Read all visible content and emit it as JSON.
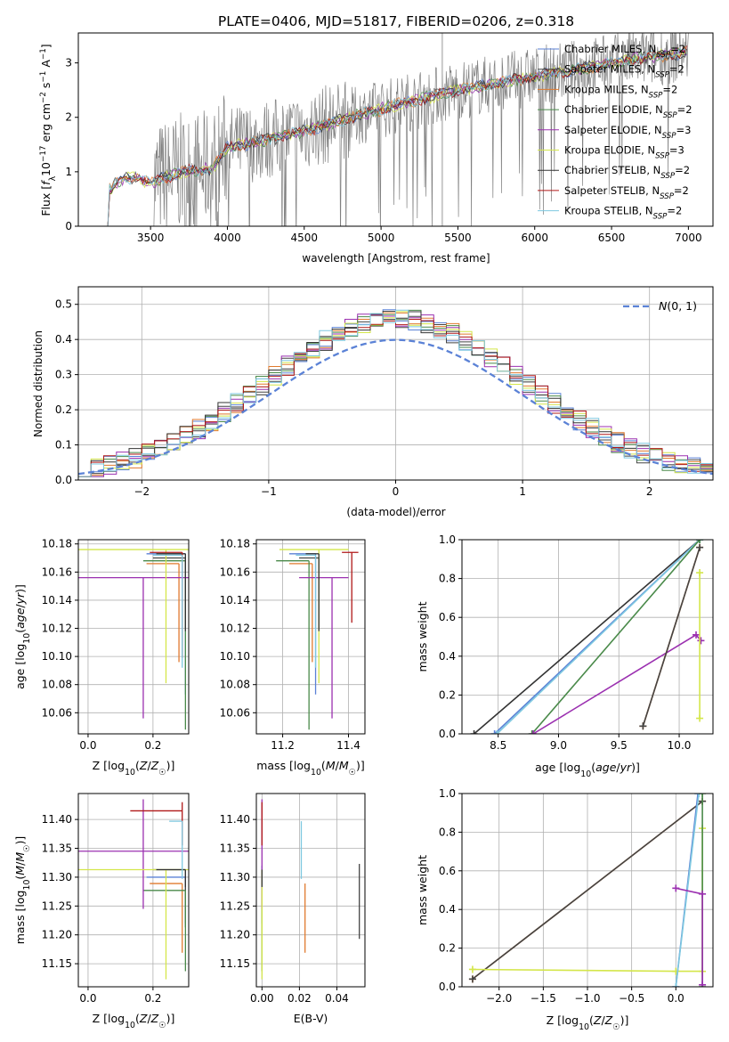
{
  "page": {
    "title": "PLATE=0406, MJD=51817, FIBERID=0206, z=0.318"
  },
  "colors": {
    "Chabrier MILES": "#5b82d6",
    "Salpeter MILES": "#444444",
    "Kroupa MILES": "#e07a2e",
    "Chabrier ELODIE": "#4a8a4a",
    "Salpeter ELODIE": "#9b30b0",
    "Kroupa ELODIE": "#d4e64a",
    "Chabrier STELIB": "#333333",
    "Salpeter STELIB": "#b01818",
    "Kroupa STELIB": "#7ec8e0",
    "data_spectrum": "#808080",
    "grid": "#b0b0b0"
  },
  "chart_data": [
    {
      "id": "spectrum",
      "type": "line",
      "title": "PLATE=0406, MJD=51817, FIBERID=0206, z=0.318",
      "xlabel": "wavelength [Angstrom, rest frame]",
      "ylabel": "Flux [fλ10⁻¹⁷ erg cm⁻² s⁻¹ A⁻¹]",
      "xlim": [
        3030,
        7160
      ],
      "ylim": [
        0,
        3.55
      ],
      "xticks": [
        3500,
        4000,
        4500,
        5000,
        5500,
        6000,
        6500,
        7000
      ],
      "yticks": [
        0,
        1,
        2,
        3
      ],
      "grid": false,
      "legend_position": "top-right",
      "legend": [
        {
          "label": "Chabrier MILES, N",
          "sub": "SSP",
          "tail": "=2"
        },
        {
          "label": "Salpeter MILES, N",
          "sub": "SSP",
          "tail": "=2"
        },
        {
          "label": "Kroupa MILES, N",
          "sub": "SSP",
          "tail": "=2"
        },
        {
          "label": "Chabrier ELODIE, N",
          "sub": "SSP",
          "tail": "=2"
        },
        {
          "label": "Salpeter ELODIE, N",
          "sub": "SSP",
          "tail": "=3"
        },
        {
          "label": "Kroupa ELODIE, N",
          "sub": "SSP",
          "tail": "=3"
        },
        {
          "label": "Chabrier STELIB, N",
          "sub": "SSP",
          "tail": "=2"
        },
        {
          "label": "Salpeter STELIB, N",
          "sub": "SSP",
          "tail": "=2"
        },
        {
          "label": "Kroupa STELIB, N",
          "sub": "SSP",
          "tail": "=2"
        }
      ],
      "continuum_knots": [
        [
          3210,
          0.6
        ],
        [
          3300,
          0.85
        ],
        [
          3400,
          0.9
        ],
        [
          3500,
          0.8
        ],
        [
          3700,
          1.0
        ],
        [
          3900,
          1.05
        ],
        [
          4000,
          1.45
        ],
        [
          4200,
          1.55
        ],
        [
          4500,
          1.75
        ],
        [
          4800,
          2.0
        ],
        [
          5000,
          2.15
        ],
        [
          5200,
          2.3
        ],
        [
          5500,
          2.5
        ],
        [
          5800,
          2.65
        ],
        [
          6000,
          2.75
        ],
        [
          6300,
          2.9
        ],
        [
          6600,
          3.05
        ],
        [
          7000,
          3.2
        ]
      ]
    },
    {
      "id": "residuals",
      "type": "histogram",
      "xlabel": "(data-model)/error",
      "ylabel": "Normed distribution",
      "xlim": [
        -2.5,
        2.5
      ],
      "ylim": [
        0,
        0.55
      ],
      "xticks": [
        -2,
        -1,
        0,
        1,
        2
      ],
      "yticks": [
        0.0,
        0.1,
        0.2,
        0.3,
        0.4,
        0.5
      ],
      "grid": true,
      "legend_position": "top-right",
      "reference_curve": {
        "label": "N(0, 1)",
        "mean": 0,
        "sigma": 1
      }
    },
    {
      "id": "age_vs_Z",
      "type": "errorbar",
      "xlabel": "Z [log10(Z/Z☉)]",
      "ylabel": "age  [log10(age/yr)]",
      "xlim": [
        -0.03,
        0.31
      ],
      "ylim": [
        10.045,
        10.183
      ],
      "xticks": [
        0.0,
        0.2
      ],
      "yticks": [
        10.06,
        10.08,
        10.1,
        10.12,
        10.14,
        10.16,
        10.18
      ],
      "grid": true,
      "points": [
        {
          "series": "Chabrier MILES",
          "x": 0.3,
          "xerr": [
            0.12,
            0
          ],
          "y": 10.173,
          "yerr": [
            0.1,
            0
          ]
        },
        {
          "series": "Salpeter MILES",
          "x": 0.3,
          "xerr": [
            0.1,
            0
          ],
          "y": 10.17,
          "yerr": [
            0.05,
            0
          ]
        },
        {
          "series": "Kroupa MILES",
          "x": 0.28,
          "xerr": [
            0.1,
            0
          ],
          "y": 10.166,
          "yerr": [
            0.07,
            0
          ]
        },
        {
          "series": "Chabrier ELODIE",
          "x": 0.3,
          "xerr": [
            0.13,
            0
          ],
          "y": 10.168,
          "yerr": [
            0.12,
            0
          ]
        },
        {
          "series": "Salpeter ELODIE",
          "x": 0.17,
          "xerr": [
            0.25,
            0.2
          ],
          "y": 10.156,
          "yerr": [
            0.1,
            0
          ]
        },
        {
          "series": "Kroupa ELODIE",
          "x": 0.24,
          "xerr": [
            0.3,
            0.07
          ],
          "y": 10.176,
          "yerr": [
            0.095,
            0
          ]
        },
        {
          "series": "Chabrier STELIB",
          "x": 0.3,
          "xerr": [
            0.09,
            0
          ],
          "y": 10.173,
          "yerr": [
            0.055,
            0
          ]
        },
        {
          "series": "Salpeter STELIB",
          "x": 0.29,
          "xerr": [
            0.1,
            0
          ],
          "y": 10.174,
          "yerr": [
            0.075,
            0
          ]
        },
        {
          "series": "Kroupa STELIB",
          "x": 0.29,
          "xerr": [
            0.09,
            0
          ],
          "y": 10.172,
          "yerr": [
            0.08,
            0
          ]
        }
      ]
    },
    {
      "id": "age_vs_mass",
      "type": "errorbar",
      "xlabel": "mass [log10(M/M☉)]",
      "ylabel": "",
      "xlim": [
        11.12,
        11.45
      ],
      "ylim": [
        10.045,
        10.183
      ],
      "xticks": [
        11.2,
        11.4
      ],
      "yticks": [
        10.06,
        10.08,
        10.1,
        10.12,
        10.14,
        10.16,
        10.18
      ],
      "grid": true,
      "points": [
        {
          "series": "Chabrier MILES",
          "x": 11.3,
          "xerr": [
            0.08,
            0
          ],
          "y": 10.173,
          "yerr": [
            0.1,
            0
          ]
        },
        {
          "series": "Salpeter MILES",
          "x": 11.31,
          "xerr": [
            0.06,
            0
          ],
          "y": 10.17,
          "yerr": [
            0.05,
            0
          ]
        },
        {
          "series": "Kroupa MILES",
          "x": 11.29,
          "xerr": [
            0.07,
            0
          ],
          "y": 10.166,
          "yerr": [
            0.07,
            0
          ]
        },
        {
          "series": "Chabrier ELODIE",
          "x": 11.28,
          "xerr": [
            0.1,
            0
          ],
          "y": 10.168,
          "yerr": [
            0.12,
            0
          ]
        },
        {
          "series": "Salpeter ELODIE",
          "x": 11.35,
          "xerr": [
            0.1,
            0.05
          ],
          "y": 10.156,
          "yerr": [
            0.1,
            0
          ]
        },
        {
          "series": "Kroupa ELODIE",
          "x": 11.31,
          "xerr": [
            0.12,
            0.09
          ],
          "y": 10.176,
          "yerr": [
            0.095,
            0
          ]
        },
        {
          "series": "Chabrier STELIB",
          "x": 11.31,
          "xerr": [
            0.04,
            0
          ],
          "y": 10.173,
          "yerr": [
            0.055,
            0
          ]
        },
        {
          "series": "Salpeter STELIB",
          "x": 11.41,
          "xerr": [
            0.03,
            0.02
          ],
          "y": 10.174,
          "yerr": [
            0.05,
            0
          ]
        },
        {
          "series": "Kroupa STELIB",
          "x": 11.3,
          "xerr": [
            0.06,
            0
          ],
          "y": 10.172,
          "yerr": [
            0.08,
            0
          ]
        }
      ]
    },
    {
      "id": "weight_vs_age",
      "type": "line",
      "xlabel": "age  [log10(age/yr)]",
      "ylabel": "mass weight",
      "xlim": [
        8.2,
        10.28
      ],
      "ylim": [
        0.0,
        1.0
      ],
      "xticks": [
        8.5,
        9.0,
        9.5,
        10.0
      ],
      "yticks": [
        0.0,
        0.2,
        0.4,
        0.6,
        0.8,
        1.0
      ],
      "grid": true,
      "series": [
        {
          "name": "Chabrier STELIB",
          "x": [
            8.3,
            10.17
          ],
          "y": [
            0.0,
            1.0
          ]
        },
        {
          "name": "Chabrier MILES",
          "x": [
            8.47,
            10.17
          ],
          "y": [
            0.0,
            1.0
          ]
        },
        {
          "name": "Kroupa STELIB",
          "x": [
            8.49,
            10.17
          ],
          "y": [
            0.0,
            1.0
          ]
        },
        {
          "name": "Chabrier ELODIE",
          "x": [
            8.78,
            10.17
          ],
          "y": [
            0.0,
            1.0
          ]
        },
        {
          "name": "Salpeter ELODIE",
          "x": [
            8.79,
            10.14,
            10.18
          ],
          "y": [
            0.0,
            0.51,
            0.48
          ]
        },
        {
          "name": "Kroupa MILES",
          "x": [
            9.7,
            10.17
          ],
          "y": [
            0.04,
            0.96
          ]
        },
        {
          "name": "Salpeter MILES",
          "x": [
            9.7,
            10.17
          ],
          "y": [
            0.04,
            0.96
          ]
        },
        {
          "name": "Kroupa ELODIE",
          "x": [
            10.17,
            10.17
          ],
          "y": [
            0.08,
            0.83
          ]
        }
      ]
    },
    {
      "id": "mass_vs_Z",
      "type": "errorbar",
      "xlabel": "Z [log10(Z/Z☉)]",
      "ylabel": "mass [log10(M/M☉)]",
      "xlim": [
        -0.03,
        0.31
      ],
      "ylim": [
        11.11,
        11.445
      ],
      "xticks": [
        0.0,
        0.2
      ],
      "yticks": [
        11.15,
        11.2,
        11.25,
        11.3,
        11.35,
        11.4
      ],
      "grid": true,
      "points": [
        {
          "series": "Chabrier MILES",
          "x": 0.3,
          "xerr": [
            0.12,
            0
          ],
          "y": 11.3,
          "yerr": [
            0.08,
            0
          ]
        },
        {
          "series": "Salpeter MILES",
          "x": 0.3,
          "xerr": [
            0.1,
            0
          ],
          "y": 11.313,
          "yerr": [
            0.1,
            0
          ]
        },
        {
          "series": "Kroupa MILES",
          "x": 0.29,
          "xerr": [
            0.1,
            0
          ],
          "y": 11.289,
          "yerr": [
            0.12,
            0
          ]
        },
        {
          "series": "Chabrier ELODIE",
          "x": 0.3,
          "xerr": [
            0.13,
            0
          ],
          "y": 11.277,
          "yerr": [
            0.14,
            0
          ]
        },
        {
          "series": "Salpeter ELODIE",
          "x": 0.17,
          "xerr": [
            0.25,
            0.2
          ],
          "y": 11.345,
          "yerr": [
            0.1,
            0.09
          ]
        },
        {
          "series": "Kroupa ELODIE",
          "x": 0.24,
          "xerr": [
            0.3,
            0.07
          ],
          "y": 11.313,
          "yerr": [
            0.19,
            0
          ]
        },
        {
          "series": "Chabrier STELIB",
          "x": 0.3,
          "xerr": [
            0.09,
            0
          ],
          "y": 11.313,
          "yerr": [
            0.03,
            0
          ]
        },
        {
          "series": "Salpeter STELIB",
          "x": 0.29,
          "xerr": [
            0.16,
            0
          ],
          "y": 11.415,
          "yerr": [
            0.06,
            0.015
          ]
        },
        {
          "series": "Kroupa STELIB",
          "x": 0.29,
          "xerr": [
            0.04,
            0
          ],
          "y": 11.397,
          "yerr": [
            0.1,
            0
          ]
        }
      ]
    },
    {
      "id": "mass_vs_EBV",
      "type": "errorbar",
      "xlabel": "E(B-V)",
      "ylabel": "",
      "xlim": [
        -0.003,
        0.055
      ],
      "ylim": [
        11.11,
        11.445
      ],
      "xticks": [
        0.0,
        0.02,
        0.04
      ],
      "yticks": [
        11.15,
        11.2,
        11.25,
        11.3,
        11.35,
        11.4
      ],
      "grid": true,
      "points": [
        {
          "series": "Chabrier MILES",
          "x": 0.0,
          "y": 11.3,
          "yerr": [
            0.08,
            0.02
          ]
        },
        {
          "series": "Salpeter MILES",
          "x": 0.052,
          "y": 11.313,
          "yerr": [
            0.12,
            0.01
          ]
        },
        {
          "series": "Kroupa MILES",
          "x": 0.023,
          "y": 11.289,
          "yerr": [
            0.12,
            0
          ]
        },
        {
          "series": "Chabrier ELODIE",
          "x": 0.0,
          "y": 11.277,
          "yerr": [
            0.14,
            0
          ]
        },
        {
          "series": "Salpeter ELODIE",
          "x": 0.0,
          "y": 11.345,
          "yerr": [
            0.1,
            0.09
          ]
        },
        {
          "series": "Kroupa ELODIE",
          "x": 0.0,
          "y": 11.313,
          "yerr": [
            0.19,
            0
          ]
        },
        {
          "series": "Chabrier STELIB",
          "x": 0.0,
          "y": 11.313,
          "yerr": [
            0.03,
            0
          ]
        },
        {
          "series": "Salpeter STELIB",
          "x": 0.0,
          "y": 11.415,
          "yerr": [
            0.06,
            0.015
          ]
        },
        {
          "series": "Kroupa STELIB",
          "x": 0.021,
          "y": 11.397,
          "yerr": [
            0.1,
            0
          ]
        }
      ]
    },
    {
      "id": "weight_vs_Z",
      "type": "line",
      "xlabel": "Z [log10(Z/Z☉)]",
      "ylabel": "mass weight",
      "xlim": [
        -2.42,
        0.42
      ],
      "ylim": [
        0.0,
        1.0
      ],
      "xticks": [
        -2.0,
        -1.5,
        -1.0,
        -0.5,
        0.0
      ],
      "yticks": [
        0.0,
        0.2,
        0.4,
        0.6,
        0.8,
        1.0
      ],
      "grid": true,
      "series": [
        {
          "name": "Kroupa MILES",
          "x": [
            -2.3,
            0.3
          ],
          "y": [
            0.04,
            0.96
          ]
        },
        {
          "name": "Salpeter MILES",
          "x": [
            -2.3,
            0.3
          ],
          "y": [
            0.04,
            0.96
          ]
        },
        {
          "name": "Kroupa ELODIE",
          "x": [
            -2.3,
            0.0,
            0.3,
            0.3
          ],
          "y": [
            0.09,
            0.08,
            0.08,
            0.82
          ]
        },
        {
          "name": "Chabrier MILES",
          "x": [
            0.0,
            0.25
          ],
          "y": [
            0.0,
            1.0
          ]
        },
        {
          "name": "Kroupa STELIB",
          "x": [
            0.0,
            0.26
          ],
          "y": [
            0.0,
            1.0
          ]
        },
        {
          "name": "Chabrier ELODIE",
          "x": [
            0.3,
            0.3
          ],
          "y": [
            0.0,
            1.0
          ]
        },
        {
          "name": "Salpeter ELODIE",
          "x": [
            0.0,
            0.3,
            0.3
          ],
          "y": [
            0.51,
            0.48,
            0.01
          ]
        }
      ]
    }
  ]
}
